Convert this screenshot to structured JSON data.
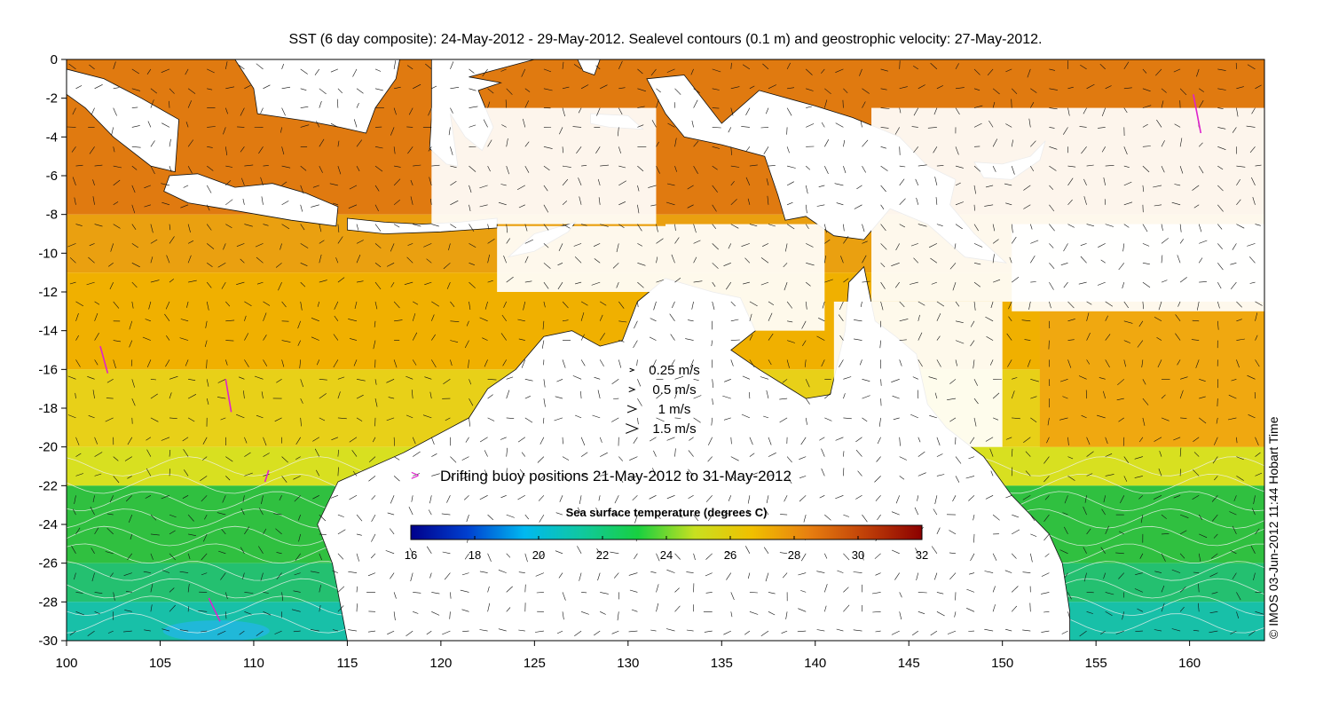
{
  "title": "SST (6 day composite): 24-May-2012 - 29-May-2012. Sealevel contours (0.1 m) and geostrophic velocity: 27-May-2012.",
  "credit": "© IMOS 03-Jun-2012 11:44 Hobart Time",
  "axes": {
    "x_ticks": [
      "100",
      "105",
      "110",
      "115",
      "120",
      "125",
      "130",
      "135",
      "140",
      "145",
      "150",
      "155",
      "160"
    ],
    "y_ticks": [
      "0",
      "-2",
      "-4",
      "-6",
      "-8",
      "-10",
      "-12",
      "-14",
      "-16",
      "-18",
      "-20",
      "-22",
      "-24",
      "-26",
      "-28",
      "-30"
    ],
    "lon_range": [
      100,
      164
    ],
    "lat_range": [
      -30,
      0
    ]
  },
  "velocity_legend": [
    {
      "label": "0.25 m/s",
      "speed": 0.25
    },
    {
      "label": "0.5 m/s",
      "speed": 0.5
    },
    {
      "label": "1 m/s",
      "speed": 1
    },
    {
      "label": "1.5 m/s",
      "speed": 1.5
    }
  ],
  "buoy_legend": {
    "label": "Drifting buoy positions 21-May-2012 to 31-May-2012",
    "marker_color": "#dd22cc"
  },
  "colorbar": {
    "title": "Sea surface temperature (degrees C)",
    "ticks": [
      "16",
      "18",
      "20",
      "22",
      "24",
      "26",
      "28",
      "30",
      "32"
    ],
    "range": [
      16,
      32
    ],
    "stops": [
      "#00008b",
      "#0040d0",
      "#00b8f0",
      "#10c8a0",
      "#18d040",
      "#c8e020",
      "#f0c000",
      "#e88010",
      "#c04008",
      "#8b0000"
    ]
  },
  "colors": {
    "land": "#ffffff",
    "warm": "#e07a10",
    "mid": "#f0b000",
    "temperate": "#d8e020",
    "cool": "#30c040",
    "cold": "#18c0a8",
    "arrows": "#111111",
    "contours": "#f0f0f0"
  }
}
